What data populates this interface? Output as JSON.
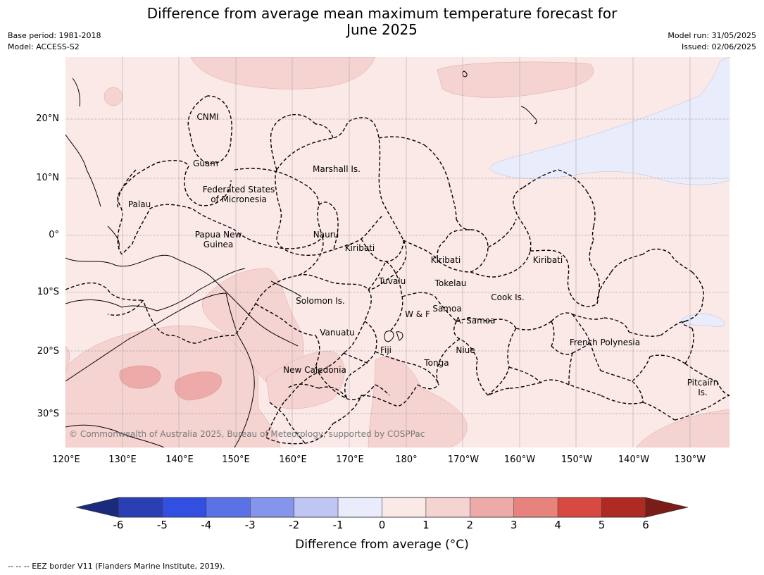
{
  "title_lines": [
    "Difference from average mean maximum temperature forecast for",
    "June 2025"
  ],
  "meta_left": [
    "Base period: 1981-2018",
    "Model: ACCESS-S2"
  ],
  "meta_right": [
    "Model run: 31/05/2025",
    "Issued: 02/06/2025"
  ],
  "lat_labels": [
    "20°N",
    "10°N",
    "0°",
    "10°S",
    "20°S",
    "30°S"
  ],
  "lon_labels": [
    "120°E",
    "130°E",
    "140°E",
    "150°E",
    "160°E",
    "170°E",
    "180°",
    "170°W",
    "160°W",
    "150°W",
    "140°W",
    "130°W"
  ],
  "regions": {
    "cnmi": "CNMI",
    "guam": "Guam",
    "marshall": "Marshall Is.",
    "fsm_1": "Federated States",
    "fsm_2": "of Micronesia",
    "palau": "Palau",
    "nauru": "Nauru",
    "png_1": "Papua New",
    "png_2": "Guinea",
    "kiribati_w": "Kiribati",
    "kiribati_c": "Kiribati",
    "kiribati_e": "Kiribati",
    "tuvalu": "Tuvalu",
    "tokelau": "Tokelau",
    "solomon": "Solomon Is.",
    "cook": "Cook Is.",
    "samoa": "Samoa",
    "wf": "W & F",
    "asamoa": "A. Samoa",
    "vanuatu": "Vanuatu",
    "fiji": "Fiji",
    "niue": "Niue",
    "french_polynesia": "French Polynesia",
    "tonga": "Tonga",
    "new_caledonia": "New Caledonia",
    "pitcairn_1": "Pitcairn",
    "pitcairn_2": "Is."
  },
  "copyright": "© Commonwealth of Australia 2025, Bureau of Meteorology, supported by COSPPac",
  "colorbar": {
    "ticks": [
      "-6",
      "-5",
      "-4",
      "-3",
      "-2",
      "-1",
      "0",
      "1",
      "2",
      "3",
      "4",
      "5",
      "6"
    ],
    "colors": [
      "#2a3fb4",
      "#3150e2",
      "#5b72e6",
      "#8595ec",
      "#bfc6f3",
      "#e9ecfb",
      "#fbe9e8",
      "#f5d3d1",
      "#eeaaa8",
      "#e7827d",
      "#d84a41",
      "#ae2a22"
    ],
    "under_color": "#1c2a7c",
    "over_color": "#7a1c18",
    "label": "Difference from average (°C)"
  },
  "footnote": "--  --  -- EEZ border V11 (Flanders Marine Institute, 2019)."
}
